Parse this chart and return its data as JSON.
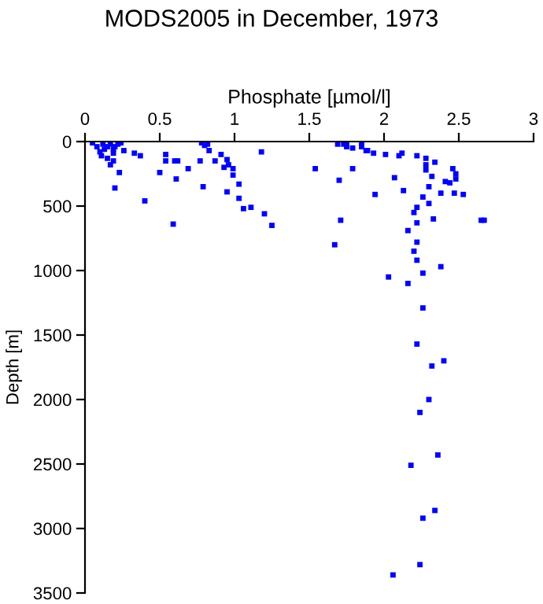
{
  "chart_data": {
    "type": "scatter",
    "title": "MODS2005 in December, 1973",
    "xlabel": "Phosphate [µmol/l]",
    "ylabel": "Depth [m]",
    "xlim": [
      0,
      3
    ],
    "xticks": [
      0,
      0.5,
      1,
      1.5,
      2,
      2.5,
      3
    ],
    "ylim": [
      3500,
      0
    ],
    "yticks": [
      0,
      500,
      1000,
      1500,
      2000,
      2500,
      3000,
      3500
    ],
    "grid": false,
    "legend": false,
    "marker": "square",
    "series": [
      {
        "color": "#0000ff",
        "x": [
          0.05,
          0.08,
          0.1,
          0.12,
          0.13,
          0.15,
          0.17,
          0.19,
          0.2,
          0.22,
          0.24,
          0.11,
          0.15,
          0.19,
          0.19,
          0.17,
          0.23,
          0.2,
          0.26,
          0.33,
          0.37,
          0.4,
          0.5,
          0.54,
          0.54,
          0.6,
          0.62,
          0.61,
          0.59,
          0.69,
          0.77,
          0.78,
          0.8,
          0.82,
          0.83,
          0.79,
          0.87,
          0.91,
          0.93,
          0.95,
          0.96,
          0.95,
          0.99,
          0.99,
          1.03,
          1.03,
          1.06,
          1.11,
          1.18,
          1.2,
          1.25,
          1.54,
          1.69,
          1.73,
          1.75,
          1.75,
          1.79,
          1.85,
          1.85,
          1.88,
          1.89,
          1.93,
          1.7,
          1.79,
          1.94,
          1.71,
          1.67,
          2.01,
          2.07,
          2.1,
          2.12,
          2.13,
          2.22,
          2.28,
          2.28,
          2.28,
          2.34,
          2.32,
          2.3,
          2.38,
          2.26,
          2.3,
          2.22,
          2.2,
          2.22,
          2.33,
          2.16,
          2.22,
          2.2,
          2.22,
          2.38,
          2.26,
          2.03,
          2.16,
          2.26,
          2.22,
          2.32,
          2.4,
          2.3,
          2.46,
          2.48,
          2.48,
          2.41,
          2.44,
          2.47,
          2.53,
          2.65,
          2.67,
          2.24,
          2.36,
          2.18,
          2.34,
          2.26,
          2.24,
          2.06
        ],
        "values": [
          10,
          40,
          80,
          20,
          60,
          40,
          20,
          60,
          40,
          20,
          10,
          110,
          130,
          90,
          150,
          180,
          240,
          360,
          70,
          90,
          110,
          460,
          240,
          100,
          150,
          150,
          150,
          290,
          640,
          210,
          150,
          10,
          30,
          20,
          70,
          350,
          150,
          100,
          200,
          140,
          180,
          390,
          210,
          260,
          330,
          440,
          520,
          510,
          80,
          560,
          650,
          210,
          20,
          20,
          10,
          40,
          50,
          10,
          40,
          70,
          70,
          90,
          300,
          210,
          410,
          610,
          800,
          100,
          280,
          110,
          90,
          380,
          110,
          130,
          180,
          220,
          160,
          270,
          350,
          400,
          430,
          480,
          510,
          550,
          630,
          600,
          690,
          780,
          850,
          920,
          970,
          1020,
          1050,
          1100,
          1290,
          1570,
          1740,
          1700,
          2000,
          210,
          250,
          290,
          310,
          320,
          400,
          410,
          610,
          610,
          2100,
          2430,
          2510,
          2860,
          2920,
          3280,
          3360
        ]
      }
    ]
  }
}
